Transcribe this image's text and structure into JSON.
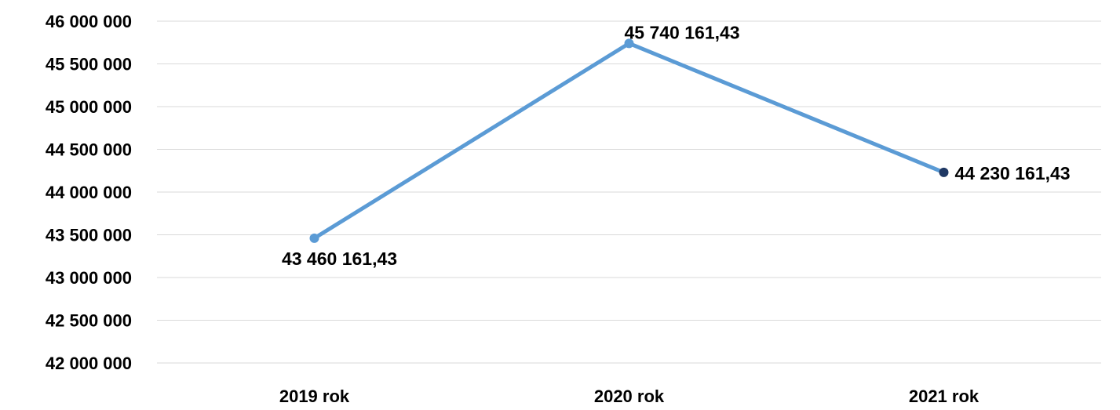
{
  "chart_data": {
    "type": "line",
    "categories": [
      "2019 rok",
      "2020 rok",
      "2021 rok"
    ],
    "series": [
      {
        "values": [
          43460161.43,
          45740161.43,
          44230161.43
        ],
        "data_labels": [
          "43 460 161,43",
          "45 740 161,43",
          "44 230 161,43"
        ],
        "color": "#5b9bd5",
        "marker_colors": [
          "#5b9bd5",
          "#5b9bd5",
          "#1f3864"
        ]
      }
    ],
    "y_ticks": [
      42000000,
      42500000,
      43000000,
      43500000,
      44000000,
      44500000,
      45000000,
      45500000,
      46000000
    ],
    "y_tick_labels": [
      "42 000 000",
      "42 500 000",
      "43 000 000",
      "43 500 000",
      "44 000 000",
      "44 500 000",
      "45 000 000",
      "45 500 000",
      "46 000 000"
    ],
    "ylim": [
      42000000,
      46000000
    ],
    "grid": true,
    "legend": "none",
    "title": "",
    "xlabel": "",
    "ylabel": ""
  }
}
